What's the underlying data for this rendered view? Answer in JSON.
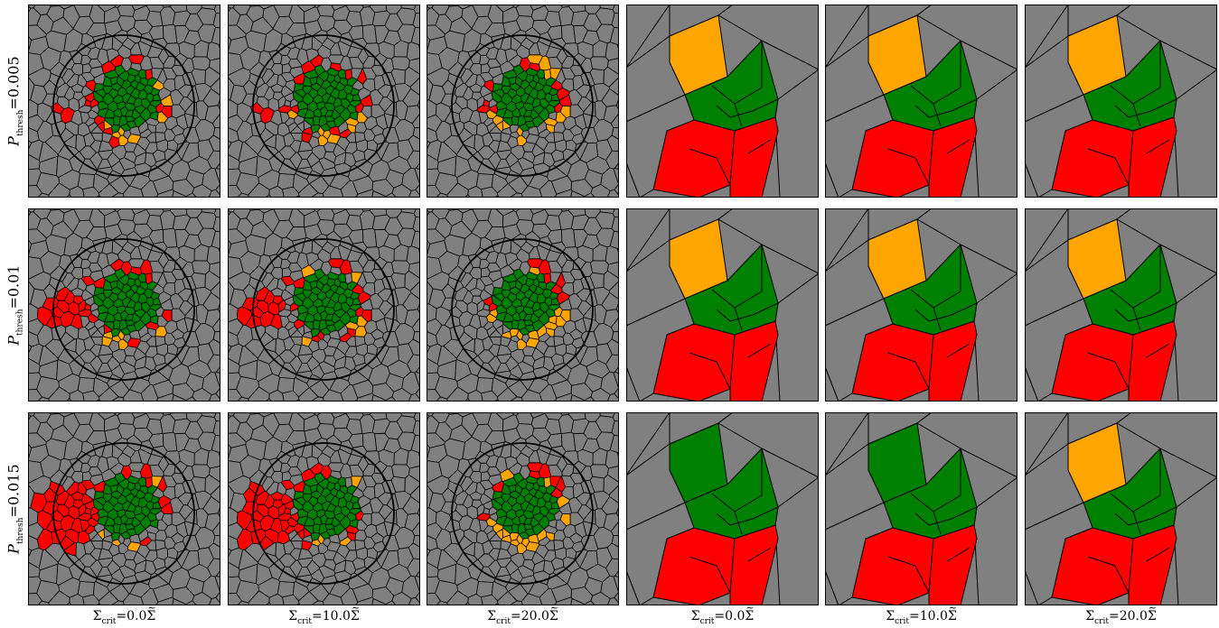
{
  "figure": {
    "row_labels": [
      {
        "symbol": "P",
        "subscript": "thresh",
        "eq": "=",
        "value": "0.005"
      },
      {
        "symbol": "P",
        "subscript": "thresh",
        "eq": "=",
        "value": "0.01"
      },
      {
        "symbol": "P",
        "subscript": "thresh",
        "eq": "=",
        "value": "0.015"
      }
    ],
    "column_labels": [
      {
        "symbol": "Σ",
        "subscript": "crit",
        "eq": "=",
        "value": "0.0",
        "unit": "Σ"
      },
      {
        "symbol": "Σ",
        "subscript": "crit",
        "eq": "=",
        "value": "10.0",
        "unit": "Σ"
      },
      {
        "symbol": "Σ",
        "subscript": "crit",
        "eq": "=",
        "value": "20.0",
        "unit": "Σ"
      },
      {
        "symbol": "Σ",
        "subscript": "crit",
        "eq": "=",
        "value": "0.0",
        "unit": "Σ"
      },
      {
        "symbol": "Σ",
        "subscript": "crit",
        "eq": "=",
        "value": "10.0",
        "unit": "Σ"
      },
      {
        "symbol": "Σ",
        "subscript": "crit",
        "eq": "=",
        "value": "20.0",
        "unit": "Σ"
      }
    ],
    "colors": {
      "background_cell": "#808080",
      "stable_cell": "#008000",
      "triggered_cell": "#ff0000",
      "marginal_cell": "#ffa500",
      "edge": "#000000",
      "circle": "#000000"
    },
    "panels": [
      {
        "row": 0,
        "col": 0,
        "view": "full",
        "green": 58,
        "red": 16,
        "orange": 8
      },
      {
        "row": 0,
        "col": 1,
        "view": "full",
        "green": 58,
        "red": 16,
        "orange": 8
      },
      {
        "row": 0,
        "col": 2,
        "view": "full",
        "green": 56,
        "red": 10,
        "orange": 14
      },
      {
        "row": 0,
        "col": 3,
        "view": "zoom",
        "top": "orange",
        "bottom_left": "red",
        "bottom_right": "red"
      },
      {
        "row": 0,
        "col": 4,
        "view": "zoom",
        "top": "orange",
        "bottom_left": "red",
        "bottom_right": "red"
      },
      {
        "row": 0,
        "col": 5,
        "view": "zoom",
        "top": "orange",
        "bottom_left": "red",
        "bottom_right": "red"
      },
      {
        "row": 1,
        "col": 0,
        "view": "full",
        "green": 58,
        "red": 26,
        "orange": 6
      },
      {
        "row": 1,
        "col": 1,
        "view": "full",
        "green": 58,
        "red": 26,
        "orange": 6
      },
      {
        "row": 1,
        "col": 2,
        "view": "full",
        "green": 56,
        "red": 8,
        "orange": 16
      },
      {
        "row": 1,
        "col": 3,
        "view": "zoom",
        "top": "orange",
        "bottom_left": "red",
        "bottom_right": "red"
      },
      {
        "row": 1,
        "col": 4,
        "view": "zoom",
        "top": "orange",
        "bottom_left": "red",
        "bottom_right": "red"
      },
      {
        "row": 1,
        "col": 5,
        "view": "zoom",
        "top": "orange",
        "bottom_left": "red",
        "bottom_right": "red"
      },
      {
        "row": 2,
        "col": 0,
        "view": "full",
        "green": 58,
        "red": 42,
        "orange": 4
      },
      {
        "row": 2,
        "col": 1,
        "view": "full",
        "green": 58,
        "red": 40,
        "orange": 4
      },
      {
        "row": 2,
        "col": 2,
        "view": "full",
        "green": 56,
        "red": 8,
        "orange": 18
      },
      {
        "row": 2,
        "col": 3,
        "view": "zoom",
        "top": "green",
        "bottom_left": "red",
        "bottom_right": "red"
      },
      {
        "row": 2,
        "col": 4,
        "view": "zoom",
        "top": "green",
        "bottom_left": "red",
        "bottom_right": "red"
      },
      {
        "row": 2,
        "col": 5,
        "view": "zoom",
        "top": "orange",
        "bottom_left": "red",
        "bottom_right": "red"
      }
    ]
  }
}
